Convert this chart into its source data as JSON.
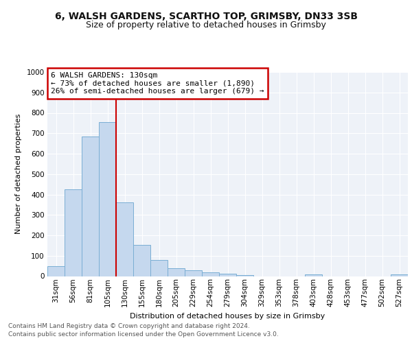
{
  "title1": "6, WALSH GARDENS, SCARTHO TOP, GRIMSBY, DN33 3SB",
  "title2": "Size of property relative to detached houses in Grimsby",
  "xlabel": "Distribution of detached houses by size in Grimsby",
  "ylabel": "Number of detached properties",
  "categories": [
    "31sqm",
    "56sqm",
    "81sqm",
    "105sqm",
    "130sqm",
    "155sqm",
    "180sqm",
    "205sqm",
    "229sqm",
    "254sqm",
    "279sqm",
    "304sqm",
    "329sqm",
    "353sqm",
    "378sqm",
    "403sqm",
    "428sqm",
    "453sqm",
    "477sqm",
    "502sqm",
    "527sqm"
  ],
  "values": [
    50,
    425,
    685,
    755,
    360,
    152,
    78,
    37,
    27,
    18,
    12,
    5,
    0,
    0,
    0,
    10,
    0,
    0,
    0,
    0,
    10
  ],
  "bar_color": "#c5d8ee",
  "bar_edge_color": "#7aaed4",
  "bar_edge_width": 0.7,
  "vline_color": "#cc0000",
  "vline_x": 3.5,
  "annotation_text": "6 WALSH GARDENS: 130sqm\n← 73% of detached houses are smaller (1,890)\n26% of semi-detached houses are larger (679) →",
  "annotation_box_color": "#ffffff",
  "annotation_box_edge": "#cc0000",
  "ylim": [
    0,
    1000
  ],
  "yticks": [
    0,
    100,
    200,
    300,
    400,
    500,
    600,
    700,
    800,
    900,
    1000
  ],
  "bg_color": "#eef2f8",
  "grid_color": "#ffffff",
  "footer1": "Contains HM Land Registry data © Crown copyright and database right 2024.",
  "footer2": "Contains public sector information licensed under the Open Government Licence v3.0.",
  "title1_fontsize": 10,
  "title2_fontsize": 9,
  "axis_fontsize": 8,
  "tick_fontsize": 7.5,
  "footer_fontsize": 6.5
}
